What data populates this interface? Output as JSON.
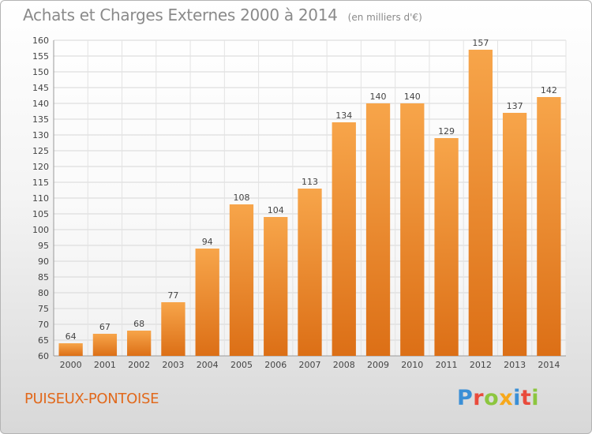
{
  "header": {
    "title": "Achats et Charges Externes 2000 à 2014",
    "unit": "(en milliers d'€)"
  },
  "footer": {
    "city": "PUISEUX-PONTOISE",
    "logo_letters": [
      {
        "ch": "P",
        "color": "#3a8fd6"
      },
      {
        "ch": "r",
        "color": "#e94b3c"
      },
      {
        "ch": "o",
        "color": "#8cc63f"
      },
      {
        "ch": "x",
        "color": "#f7a81b"
      },
      {
        "ch": "i",
        "color": "#3a8fd6"
      },
      {
        "ch": "t",
        "color": "#e94b3c"
      },
      {
        "ch": "i",
        "color": "#8cc63f"
      }
    ]
  },
  "chart_data": {
    "type": "bar",
    "title": "Achats et Charges Externes 2000 à 2014",
    "subtitle": "(en milliers d'€)",
    "categories": [
      "2000",
      "2001",
      "2002",
      "2003",
      "2004",
      "2005",
      "2006",
      "2007",
      "2008",
      "2009",
      "2010",
      "2011",
      "2012",
      "2013",
      "2014"
    ],
    "values": [
      64,
      67,
      68,
      77,
      94,
      108,
      104,
      113,
      134,
      140,
      140,
      129,
      157,
      137,
      142
    ],
    "ylim": [
      60,
      160
    ],
    "ytick_step": 5,
    "grid": true,
    "bar_color_top": "#f7a54a",
    "bar_color_bottom": "#dc6f16"
  }
}
